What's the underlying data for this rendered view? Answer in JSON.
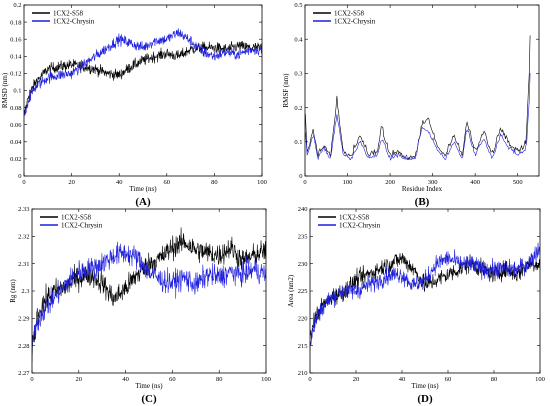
{
  "chart_data": [
    {
      "type": "line",
      "label": "(A)",
      "xlabel": "Time (ns)",
      "ylabel": "RMSD (nm)",
      "xlim": [
        0,
        100
      ],
      "ylim": [
        0,
        0.2
      ],
      "xticks": [
        0,
        20,
        40,
        60,
        80,
        100
      ],
      "yticks": [
        0,
        0.02,
        0.04,
        0.06,
        0.08,
        0.1,
        0.12,
        0.14,
        0.16,
        0.18,
        0.2
      ],
      "ytick_labels": [
        "0",
        "0.02",
        "0.04",
        "0.06",
        "0.08",
        "0.1",
        "0.12",
        "0.14",
        "0.16",
        "0.18",
        "0.2"
      ],
      "legend_position": "top-left",
      "series": [
        {
          "name": "1CX2-S58",
          "color": "#000000",
          "x": [
            0,
            2,
            5,
            10,
            15,
            20,
            25,
            30,
            35,
            40,
            45,
            50,
            55,
            60,
            65,
            70,
            75,
            80,
            85,
            90,
            95,
            100
          ],
          "y": [
            0.07,
            0.095,
            0.11,
            0.125,
            0.128,
            0.13,
            0.128,
            0.125,
            0.12,
            0.118,
            0.128,
            0.135,
            0.14,
            0.143,
            0.14,
            0.148,
            0.15,
            0.15,
            0.148,
            0.152,
            0.15,
            0.15
          ]
        },
        {
          "name": "1CX2-Chrysin",
          "color": "#1f1fdd",
          "x": [
            0,
            2,
            5,
            10,
            15,
            20,
            25,
            30,
            35,
            40,
            45,
            50,
            55,
            60,
            65,
            70,
            75,
            80,
            85,
            90,
            95,
            100
          ],
          "y": [
            0.07,
            0.09,
            0.105,
            0.115,
            0.118,
            0.12,
            0.13,
            0.14,
            0.15,
            0.16,
            0.155,
            0.15,
            0.158,
            0.16,
            0.168,
            0.158,
            0.145,
            0.14,
            0.145,
            0.142,
            0.148,
            0.148
          ]
        }
      ]
    },
    {
      "type": "line",
      "label": "(B)",
      "xlabel": "Residue Index",
      "ylabel": "RMSF (nm)",
      "xlim": [
        0,
        550
      ],
      "ylim": [
        0,
        0.5
      ],
      "xticks": [
        0,
        100,
        200,
        300,
        400,
        500
      ],
      "yticks": [
        0,
        0.1,
        0.2,
        0.3,
        0.4,
        0.5
      ],
      "ytick_labels": [
        "0",
        "0.1",
        "0.2",
        "0.3",
        "0.4",
        "0.5"
      ],
      "legend_position": "top-left",
      "series": [
        {
          "name": "1CX2-S58",
          "color": "#000000",
          "x": [
            0,
            5,
            20,
            30,
            45,
            60,
            75,
            90,
            110,
            130,
            150,
            170,
            180,
            200,
            220,
            240,
            260,
            275,
            290,
            310,
            330,
            350,
            370,
            380,
            400,
            420,
            440,
            460,
            480,
            500,
            510,
            520,
            527,
            530
          ],
          "y": [
            0.21,
            0.07,
            0.13,
            0.06,
            0.09,
            0.06,
            0.22,
            0.07,
            0.06,
            0.12,
            0.06,
            0.07,
            0.14,
            0.06,
            0.07,
            0.05,
            0.06,
            0.15,
            0.17,
            0.09,
            0.06,
            0.12,
            0.06,
            0.16,
            0.07,
            0.13,
            0.06,
            0.14,
            0.09,
            0.07,
            0.08,
            0.1,
            0.3,
            0.46
          ]
        },
        {
          "name": "1CX2-Chrysin",
          "color": "#1f1fdd",
          "x": [
            0,
            5,
            20,
            30,
            45,
            60,
            75,
            90,
            110,
            130,
            150,
            170,
            180,
            200,
            220,
            240,
            260,
            275,
            290,
            310,
            330,
            350,
            370,
            380,
            400,
            420,
            440,
            460,
            480,
            500,
            510,
            520,
            527,
            530
          ],
          "y": [
            0.15,
            0.06,
            0.12,
            0.05,
            0.08,
            0.05,
            0.18,
            0.06,
            0.05,
            0.1,
            0.05,
            0.06,
            0.11,
            0.05,
            0.06,
            0.05,
            0.05,
            0.14,
            0.13,
            0.08,
            0.05,
            0.1,
            0.05,
            0.14,
            0.06,
            0.11,
            0.05,
            0.12,
            0.08,
            0.06,
            0.07,
            0.08,
            0.22,
            0.33
          ]
        }
      ]
    },
    {
      "type": "line",
      "label": "(C)",
      "xlabel": "Time (ns)",
      "ylabel": "Rg (nm)",
      "xlim": [
        0,
        100
      ],
      "ylim": [
        2.27,
        2.33
      ],
      "xticks": [
        0,
        20,
        40,
        60,
        80,
        100
      ],
      "yticks": [
        2.27,
        2.28,
        2.29,
        2.3,
        2.31,
        2.32,
        2.33
      ],
      "ytick_labels": [
        "2.27",
        "2.28",
        "2.29",
        "2.3",
        "2.31",
        "2.32",
        "2.33"
      ],
      "legend_position": "top-left",
      "series": [
        {
          "name": "1CX2-S58",
          "color": "#000000",
          "x": [
            0,
            2,
            5,
            10,
            15,
            20,
            25,
            30,
            35,
            40,
            45,
            50,
            55,
            60,
            65,
            70,
            75,
            80,
            85,
            90,
            95,
            100
          ],
          "y": [
            2.278,
            2.29,
            2.296,
            2.3,
            2.302,
            2.305,
            2.306,
            2.303,
            2.297,
            2.301,
            2.306,
            2.31,
            2.312,
            2.316,
            2.318,
            2.315,
            2.314,
            2.313,
            2.316,
            2.311,
            2.313,
            2.315
          ]
        },
        {
          "name": "1CX2-Chrysin",
          "color": "#1f1fdd",
          "x": [
            0,
            2,
            5,
            10,
            15,
            20,
            25,
            30,
            35,
            40,
            45,
            50,
            55,
            60,
            65,
            70,
            75,
            80,
            85,
            90,
            95,
            100
          ],
          "y": [
            2.28,
            2.288,
            2.293,
            2.298,
            2.303,
            2.307,
            2.308,
            2.31,
            2.313,
            2.314,
            2.312,
            2.307,
            2.304,
            2.303,
            2.305,
            2.302,
            2.306,
            2.305,
            2.307,
            2.306,
            2.308,
            2.306
          ]
        }
      ]
    },
    {
      "type": "line",
      "label": "(D)",
      "xlabel": "Time (ns)",
      "ylabel": "Area (nm2)",
      "xlim": [
        0,
        100
      ],
      "ylim": [
        210,
        240
      ],
      "xticks": [
        0,
        20,
        40,
        60,
        80,
        100
      ],
      "yticks": [
        210,
        215,
        220,
        225,
        230,
        235,
        240
      ],
      "ytick_labels": [
        "210",
        "215",
        "220",
        "225",
        "230",
        "235",
        "240"
      ],
      "legend_position": "top-left",
      "series": [
        {
          "name": "1CX2-S58",
          "color": "#000000",
          "x": [
            0,
            2,
            5,
            10,
            15,
            20,
            25,
            30,
            35,
            40,
            45,
            50,
            55,
            60,
            65,
            70,
            75,
            80,
            85,
            90,
            95,
            100
          ],
          "y": [
            216,
            220,
            222,
            224,
            225,
            227,
            228,
            229,
            230,
            231,
            229,
            226,
            227,
            228,
            229,
            230,
            229,
            228,
            229,
            228,
            230,
            230
          ]
        },
        {
          "name": "1CX2-Chrysin",
          "color": "#1f1fdd",
          "x": [
            0,
            2,
            5,
            10,
            15,
            20,
            25,
            30,
            35,
            40,
            45,
            50,
            55,
            60,
            65,
            70,
            75,
            80,
            85,
            90,
            95,
            100
          ],
          "y": [
            215,
            219,
            222,
            224,
            225,
            225,
            226,
            227,
            228,
            228,
            226,
            227,
            230,
            231,
            230,
            230,
            229,
            229,
            229,
            229,
            230,
            233
          ]
        }
      ]
    }
  ]
}
